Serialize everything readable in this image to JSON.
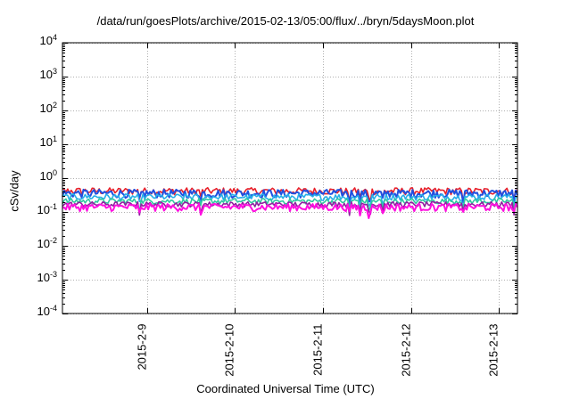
{
  "title": "/data/run/goesPlots/archive/2015-02-13/05:00/flux/../bryn/5daysMoon.plot",
  "chart_data": {
    "type": "line",
    "title": "/data/run/goesPlots/archive/2015-02-13/05:00/flux/../bryn/5daysMoon.plot",
    "xlabel": "Coordinated Universal Time (UTC)",
    "ylabel": "cSv/day",
    "yscale": "log",
    "ylim": [
      0.0001,
      10000
    ],
    "xlim": [
      "2015-02-08 01:00",
      "2015-02-13 05:00"
    ],
    "grid": true,
    "legend": "none",
    "y_ticks": [
      {
        "base": "10",
        "exp": "4"
      },
      {
        "base": "10",
        "exp": "3"
      },
      {
        "base": "10",
        "exp": "2"
      },
      {
        "base": "10",
        "exp": "1"
      },
      {
        "base": "10",
        "exp": "0"
      },
      {
        "base": "10",
        "exp": "-1"
      },
      {
        "base": "10",
        "exp": "-2"
      },
      {
        "base": "10",
        "exp": "-3"
      },
      {
        "base": "10",
        "exp": "-4"
      }
    ],
    "x_ticks": [
      "2015-2-9",
      "2015-2-10",
      "2015-2-11",
      "2015-2-12",
      "2015-2-13"
    ],
    "series": [
      {
        "color": "#e8202a",
        "approx_level": 0.42,
        "spread": 0.1
      },
      {
        "color": "#2050e0",
        "approx_level": 0.36,
        "spread": 0.1
      },
      {
        "color": "#28b0e8",
        "approx_level": 0.28,
        "spread": 0.06
      },
      {
        "color": "#30c8a0",
        "approx_level": 0.21,
        "spread": 0.04
      },
      {
        "color": "#9020a0",
        "approx_level": 0.17,
        "spread": 0.03
      },
      {
        "color": "#ff10e0",
        "approx_level": 0.14,
        "spread": 0.035
      }
    ]
  }
}
